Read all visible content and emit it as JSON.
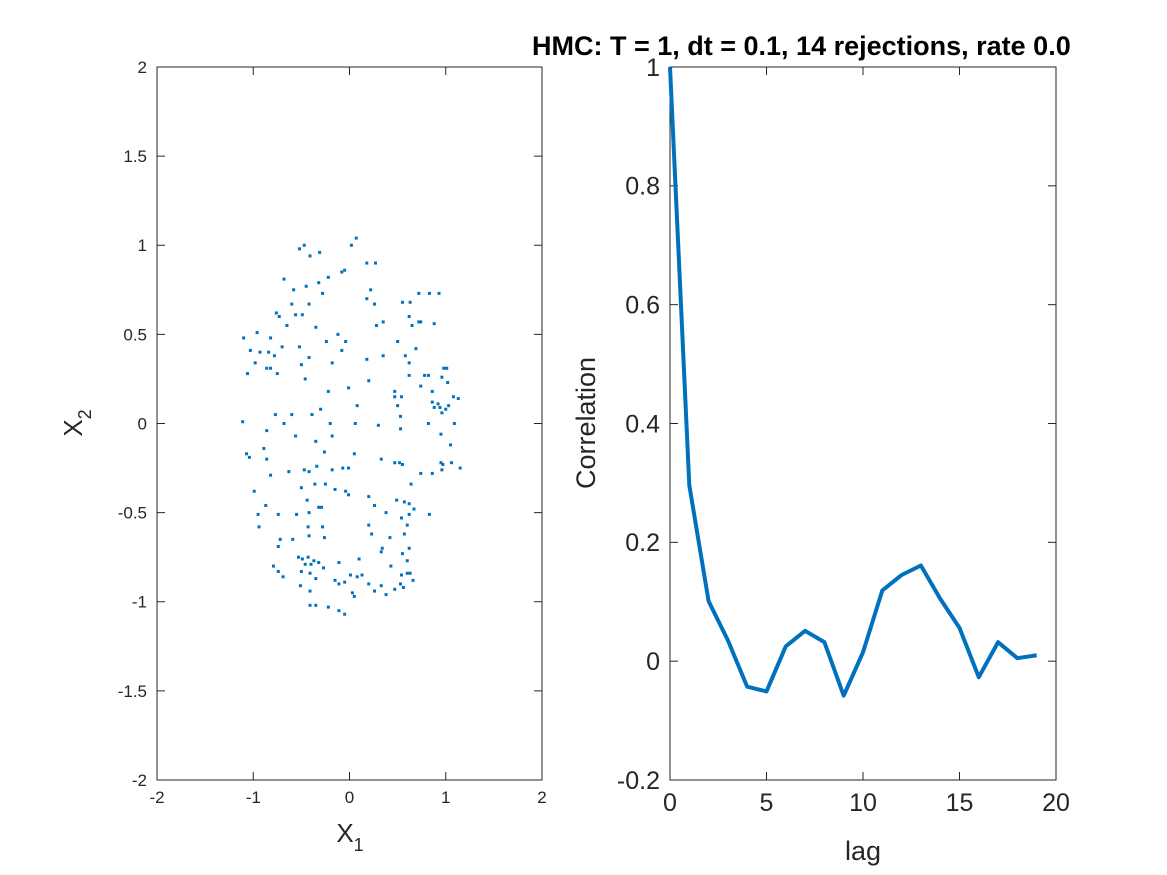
{
  "chart_data": [
    {
      "type": "scatter",
      "title": "",
      "xlabel": "X",
      "xlabel_sub": "1",
      "ylabel": "X",
      "ylabel_sub": "2",
      "xlim": [
        -2,
        2
      ],
      "ylim": [
        -2,
        2
      ],
      "xticks": [
        -2,
        -1,
        0,
        1,
        2
      ],
      "yticks": [
        -2,
        -1.5,
        -1,
        -0.5,
        0,
        0.5,
        1,
        1.5,
        2
      ],
      "grid": false,
      "color": "#0072BD",
      "points": [
        [
          -0.52,
          0.98
        ],
        [
          -0.47,
          1.0
        ],
        [
          -0.41,
          0.94
        ],
        [
          -0.31,
          0.96
        ],
        [
          0.02,
          1.0
        ],
        [
          0.07,
          1.04
        ],
        [
          -0.05,
          0.86
        ],
        [
          -0.22,
          0.82
        ],
        [
          0.18,
          0.9
        ],
        [
          0.27,
          0.9
        ],
        [
          -0.68,
          0.81
        ],
        [
          -0.58,
          0.75
        ],
        [
          -0.45,
          0.77
        ],
        [
          -0.32,
          0.79
        ],
        [
          -0.08,
          0.85
        ],
        [
          0.22,
          0.75
        ],
        [
          0.18,
          0.7
        ],
        [
          -0.6,
          0.67
        ],
        [
          -0.42,
          0.67
        ],
        [
          -0.28,
          0.73
        ],
        [
          0.26,
          0.67
        ],
        [
          0.55,
          0.68
        ],
        [
          0.63,
          0.68
        ],
        [
          0.72,
          0.73
        ],
        [
          0.83,
          0.73
        ],
        [
          0.93,
          0.73
        ],
        [
          -0.76,
          0.62
        ],
        [
          -0.73,
          0.6
        ],
        [
          -0.56,
          0.61
        ],
        [
          -0.49,
          0.61
        ],
        [
          0.62,
          0.6
        ],
        [
          0.74,
          0.57
        ],
        [
          -0.96,
          0.51
        ],
        [
          -1.1,
          0.48
        ],
        [
          -0.82,
          0.48
        ],
        [
          -0.65,
          0.55
        ],
        [
          -0.35,
          0.54
        ],
        [
          -0.12,
          0.5
        ],
        [
          0.28,
          0.55
        ],
        [
          0.35,
          0.57
        ],
        [
          0.65,
          0.55
        ],
        [
          0.72,
          0.57
        ],
        [
          0.88,
          0.56
        ],
        [
          -1.03,
          0.41
        ],
        [
          -0.93,
          0.4
        ],
        [
          -0.84,
          0.4
        ],
        [
          -0.78,
          0.38
        ],
        [
          -0.7,
          0.43
        ],
        [
          -0.52,
          0.43
        ],
        [
          -0.24,
          0.46
        ],
        [
          -0.04,
          0.46
        ],
        [
          0.5,
          0.46
        ],
        [
          0.69,
          0.42
        ],
        [
          -0.82,
          0.31
        ],
        [
          -0.86,
          0.31
        ],
        [
          -0.75,
          0.28
        ],
        [
          -0.98,
          0.34
        ],
        [
          -0.5,
          0.33
        ],
        [
          -0.42,
          0.37
        ],
        [
          -0.18,
          0.34
        ],
        [
          -0.08,
          0.41
        ],
        [
          0.18,
          0.36
        ],
        [
          0.35,
          0.38
        ],
        [
          0.58,
          0.38
        ],
        [
          0.62,
          0.34
        ],
        [
          0.98,
          0.31
        ],
        [
          1.01,
          0.31
        ],
        [
          -1.06,
          0.28
        ],
        [
          -0.46,
          0.25
        ],
        [
          0.2,
          0.24
        ],
        [
          0.62,
          0.27
        ],
        [
          0.78,
          0.27
        ],
        [
          0.82,
          0.27
        ],
        [
          0.96,
          0.26
        ],
        [
          1.02,
          0.23
        ],
        [
          -0.22,
          0.18
        ],
        [
          -0.01,
          0.2
        ],
        [
          0.47,
          0.18
        ],
        [
          0.74,
          0.21
        ],
        [
          0.86,
          0.18
        ],
        [
          1.08,
          0.15
        ],
        [
          1.13,
          0.14
        ],
        [
          0.47,
          0.15
        ],
        [
          0.54,
          0.15
        ],
        [
          0.86,
          0.12
        ],
        [
          0.92,
          0.11
        ],
        [
          -0.3,
          0.08
        ],
        [
          0.08,
          0.1
        ],
        [
          0.5,
          0.1
        ],
        [
          0.88,
          0.09
        ],
        [
          0.94,
          0.09
        ],
        [
          1.0,
          0.08
        ],
        [
          1.03,
          0.1
        ],
        [
          -0.77,
          0.05
        ],
        [
          -0.6,
          0.05
        ],
        [
          -0.39,
          0.05
        ],
        [
          -0.68,
          0.0
        ],
        [
          0.53,
          0.04
        ],
        [
          0.96,
          0.06
        ],
        [
          -1.11,
          0.01
        ],
        [
          -0.2,
          0.0
        ],
        [
          0.06,
          0.0
        ],
        [
          0.3,
          -0.01
        ],
        [
          0.82,
          0.0
        ],
        [
          1.09,
          0.0
        ],
        [
          -0.86,
          -0.04
        ],
        [
          0.53,
          -0.03
        ],
        [
          -1.07,
          -0.17
        ],
        [
          -1.04,
          -0.19
        ],
        [
          -0.89,
          -0.14
        ],
        [
          -0.56,
          -0.07
        ],
        [
          -0.35,
          -0.1
        ],
        [
          -0.18,
          -0.07
        ],
        [
          0.95,
          -0.06
        ],
        [
          -0.86,
          -0.2
        ],
        [
          -0.26,
          -0.16
        ],
        [
          0.05,
          -0.17
        ],
        [
          1.05,
          -0.12
        ],
        [
          0.33,
          -0.2
        ],
        [
          0.47,
          -0.22
        ],
        [
          0.52,
          -0.22
        ],
        [
          0.55,
          -0.23
        ],
        [
          0.95,
          -0.22
        ],
        [
          0.96,
          -0.26
        ],
        [
          0.97,
          -0.23
        ],
        [
          1.06,
          -0.22
        ],
        [
          1.15,
          -0.25
        ],
        [
          -0.82,
          -0.29
        ],
        [
          -0.63,
          -0.27
        ],
        [
          -0.47,
          -0.26
        ],
        [
          -0.42,
          -0.27
        ],
        [
          -0.34,
          -0.24
        ],
        [
          -0.18,
          -0.26
        ],
        [
          -0.07,
          -0.25
        ],
        [
          -0.01,
          -0.25
        ],
        [
          0.74,
          -0.28
        ],
        [
          0.86,
          -0.28
        ],
        [
          -0.99,
          -0.38
        ],
        [
          -0.5,
          -0.36
        ],
        [
          -0.36,
          -0.34
        ],
        [
          -0.25,
          -0.34
        ],
        [
          -0.15,
          -0.37
        ],
        [
          -0.04,
          -0.38
        ],
        [
          0.64,
          -0.34
        ],
        [
          -0.87,
          -0.46
        ],
        [
          -0.44,
          -0.43
        ],
        [
          -0.29,
          -0.47
        ],
        [
          -0.01,
          -0.4
        ],
        [
          0.2,
          -0.41
        ],
        [
          0.26,
          -0.46
        ],
        [
          0.49,
          -0.43
        ],
        [
          0.57,
          -0.44
        ],
        [
          0.62,
          -0.45
        ],
        [
          0.67,
          -0.48
        ],
        [
          0.62,
          -0.51
        ],
        [
          -0.95,
          -0.51
        ],
        [
          -0.74,
          -0.51
        ],
        [
          -0.55,
          -0.51
        ],
        [
          -0.42,
          -0.5
        ],
        [
          -0.32,
          -0.47
        ],
        [
          0.38,
          -0.5
        ],
        [
          0.54,
          -0.53
        ],
        [
          0.83,
          -0.51
        ],
        [
          -0.94,
          -0.58
        ],
        [
          -0.43,
          -0.58
        ],
        [
          -0.28,
          -0.58
        ],
        [
          0.2,
          -0.57
        ],
        [
          0.6,
          -0.57
        ],
        [
          -0.72,
          -0.65
        ],
        [
          -0.59,
          -0.65
        ],
        [
          -0.42,
          -0.63
        ],
        [
          -0.26,
          -0.64
        ],
        [
          0.23,
          -0.62
        ],
        [
          0.42,
          -0.64
        ],
        [
          0.57,
          -0.62
        ],
        [
          -0.74,
          -0.69
        ],
        [
          0.34,
          -0.7
        ],
        [
          0.33,
          -0.72
        ],
        [
          0.55,
          -0.73
        ],
        [
          0.62,
          -0.7
        ],
        [
          -0.53,
          -0.75
        ],
        [
          -0.49,
          -0.76
        ],
        [
          -0.43,
          -0.75
        ],
        [
          -0.4,
          -0.79
        ],
        [
          -0.37,
          -0.77
        ],
        [
          -0.32,
          -0.78
        ],
        [
          -0.11,
          -0.78
        ],
        [
          0.1,
          -0.76
        ],
        [
          0.6,
          -0.77
        ],
        [
          -0.79,
          -0.8
        ],
        [
          -0.5,
          -0.83
        ],
        [
          -0.46,
          -0.79
        ],
        [
          -0.27,
          -0.81
        ],
        [
          0.43,
          -0.8
        ],
        [
          -0.74,
          -0.83
        ],
        [
          -0.69,
          -0.86
        ],
        [
          -0.41,
          -0.84
        ],
        [
          0.01,
          -0.85
        ],
        [
          0.13,
          -0.85
        ],
        [
          -0.35,
          -0.87
        ],
        [
          -0.15,
          -0.88
        ],
        [
          0.08,
          -0.86
        ],
        [
          0.54,
          -0.85
        ],
        [
          0.6,
          -0.84
        ],
        [
          0.63,
          -0.84
        ],
        [
          -0.51,
          -0.91
        ],
        [
          -0.11,
          -0.9
        ],
        [
          -0.05,
          -0.89
        ],
        [
          0.2,
          -0.9
        ],
        [
          0.33,
          -0.91
        ],
        [
          0.53,
          -0.9
        ],
        [
          0.66,
          -0.88
        ],
        [
          -0.41,
          -0.94
        ],
        [
          0.26,
          -0.94
        ],
        [
          0.47,
          -0.93
        ],
        [
          0.56,
          -0.92
        ],
        [
          0.03,
          -0.95
        ],
        [
          0.05,
          -0.97
        ],
        [
          0.38,
          -0.96
        ],
        [
          -0.41,
          -1.02
        ],
        [
          -0.35,
          -1.02
        ],
        [
          -0.22,
          -1.03
        ],
        [
          -0.11,
          -1.05
        ],
        [
          -0.05,
          -1.07
        ]
      ]
    },
    {
      "type": "line",
      "title": "HMC: T = 1, dt = 0.1, 14 rejections, rate 0.0",
      "xlabel": "lag",
      "ylabel": "Correlation",
      "xlim": [
        0,
        20
      ],
      "ylim": [
        -0.2,
        1
      ],
      "xticks": [
        0,
        5,
        10,
        15,
        20
      ],
      "yticks": [
        -0.2,
        0,
        0.2,
        0.4,
        0.6,
        0.8,
        1
      ],
      "grid": false,
      "color": "#0072BD",
      "x": [
        0,
        1,
        2,
        3,
        4,
        5,
        6,
        7,
        8,
        9,
        10,
        11,
        12,
        13,
        14,
        15,
        16,
        17,
        18,
        19
      ],
      "y": [
        1.0,
        0.296,
        0.101,
        0.035,
        -0.043,
        -0.051,
        0.025,
        0.051,
        0.032,
        -0.058,
        0.015,
        0.119,
        0.145,
        0.161,
        0.105,
        0.056,
        -0.027,
        0.032,
        0.005,
        0.01
      ]
    }
  ]
}
